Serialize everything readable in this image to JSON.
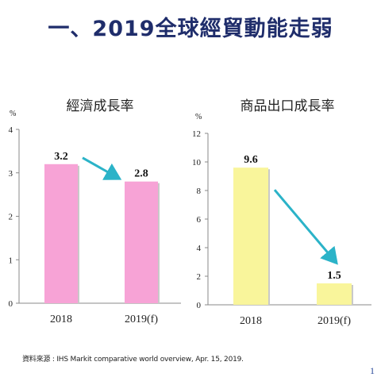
{
  "slide": {
    "title": "一、2019全球經貿動能走弱",
    "source": "資料來源 : IHS Markit comparative world overview, Apr. 15, 2019.",
    "page_number": "1"
  },
  "chart_data": [
    {
      "type": "bar",
      "title": "經濟成長率",
      "unit": "%",
      "categories": [
        "2018",
        "2019(f)"
      ],
      "values": [
        3.2,
        2.8
      ],
      "data_labels": [
        "3.2",
        "2.8"
      ],
      "ylim": [
        0,
        4
      ],
      "yticks": [
        0,
        1,
        2,
        3,
        4
      ],
      "bar_color": "#f7a3d6",
      "arrow_color": "#2bb3c8"
    },
    {
      "type": "bar",
      "title": "商品出口成長率",
      "unit": "%",
      "categories": [
        "2018",
        "2019(f)"
      ],
      "values": [
        9.6,
        1.5
      ],
      "data_labels": [
        "9.6",
        "1.5"
      ],
      "ylim": [
        0,
        12
      ],
      "yticks": [
        0,
        2,
        4,
        6,
        8,
        10,
        12
      ],
      "bar_color": "#f9f59b",
      "arrow_color": "#2bb3c8"
    }
  ]
}
